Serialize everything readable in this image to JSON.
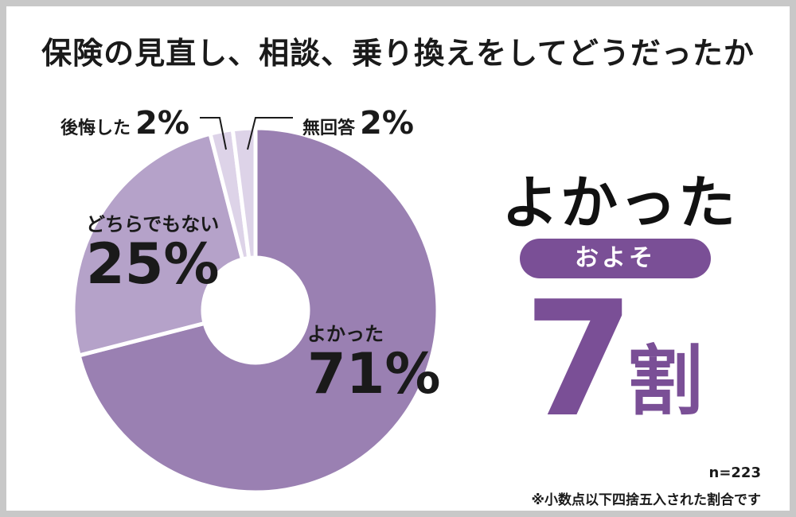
{
  "title": "保険の見直し、相談、乗り換えをしてどうだったか",
  "chart_data": {
    "type": "pie",
    "categories": [
      "よかった",
      "どちらでもない",
      "後悔した",
      "無回答"
    ],
    "values": [
      71,
      25,
      2,
      2
    ],
    "value_labels": [
      "71%",
      "25%",
      "2%",
      "2%"
    ],
    "colors": [
      "#9a80b2",
      "#b5a2c9",
      "#ddd3e8",
      "#ddd3e8"
    ]
  },
  "summary": {
    "headline": "よかった",
    "pill": "およそ",
    "number": "7",
    "unit": "割"
  },
  "sample_size": "n=223",
  "footnote": "※小数点以下四捨五入された割合です"
}
